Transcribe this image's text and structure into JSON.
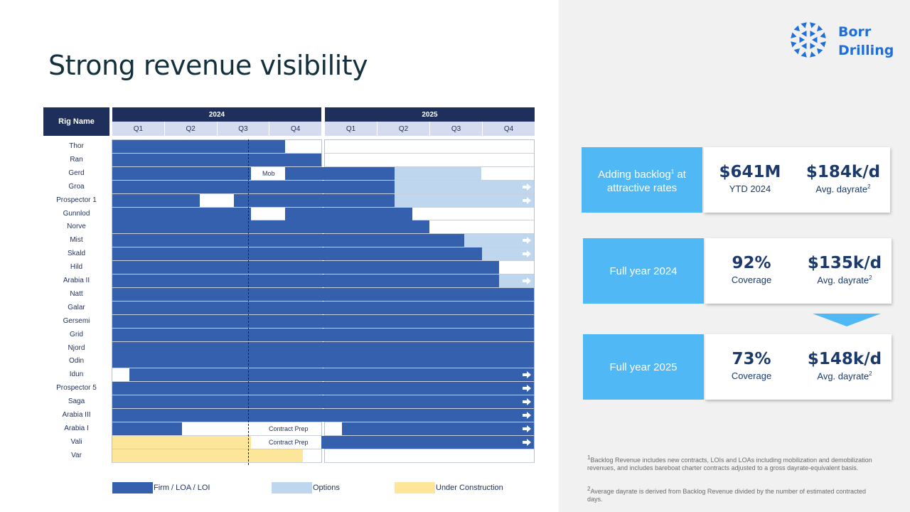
{
  "title": "Strong revenue visibility",
  "logo": {
    "line1": "Borr",
    "line2": "Drilling",
    "icon": "borr-triangles-logo-icon",
    "color": "#1e6fd9"
  },
  "gantt": {
    "rig_header": "Rig Name",
    "years": [
      {
        "label": "2024",
        "quarters": [
          "Q1",
          "Q2",
          "Q3",
          "Q4"
        ]
      },
      {
        "label": "2025",
        "quarters": [
          "Q1",
          "Q2",
          "Q3",
          "Q4"
        ]
      }
    ],
    "rigs": [
      "Thor",
      "Ran",
      "Gerd",
      "Groa",
      "Prospector 1",
      "Gunnlod",
      "Norve",
      "Mist",
      "Skald",
      "Hild",
      "Arabia II",
      "Natt",
      "Galar",
      "Gersemi",
      "Grid",
      "Njord",
      "Odin",
      "Idun",
      "Prospector 5",
      "Saga",
      "Arabia III",
      "Arabia I",
      "Vali",
      "Var"
    ],
    "bar_text": {
      "mob": "Mob",
      "contract_prep": "Contract  Prep"
    },
    "colors": {
      "firm": "#3460ad",
      "option": "#bfd6ef",
      "under_construction": "#fde69a"
    },
    "legend": [
      {
        "label": "Firm / LOA / LOI",
        "color": "#3460ad"
      },
      {
        "label": "Options",
        "color": "#bfd6ef"
      },
      {
        "label": "Under Construction",
        "color": "#fde69a"
      }
    ]
  },
  "kpis": [
    {
      "label_html": "Adding backlog",
      "label_sup": "1",
      "label_rest": " at attractive rates",
      "v1": "$641M",
      "s1": "YTD 2024",
      "v2": "$184k/d",
      "s2": "Avg. dayrate",
      "s2_sup": "2"
    },
    {
      "label_html": "Full year 2024",
      "label_sup": "",
      "label_rest": "",
      "v1": "92%",
      "s1": "Coverage",
      "v2": "$135k/d",
      "s2": "Avg. dayrate",
      "s2_sup": "2"
    },
    {
      "label_html": "Full year 2025",
      "label_sup": "",
      "label_rest": "",
      "v1": "73%",
      "s1": "Coverage",
      "v2": "$148k/d",
      "s2": "Avg. dayrate",
      "s2_sup": "2"
    }
  ],
  "footnotes": {
    "fn1_mark": "1",
    "fn1": "Backlog Revenue includes new contracts, LOIs and LOAs including mobilization and demobilization revenues, and includes bareboat charter contracts adjusted to a gross dayrate-equivalent basis.",
    "fn2_mark": "2",
    "fn2": "Average dayrate is derived from Backlog Revenue divided by the number of estimated contracted days."
  }
}
